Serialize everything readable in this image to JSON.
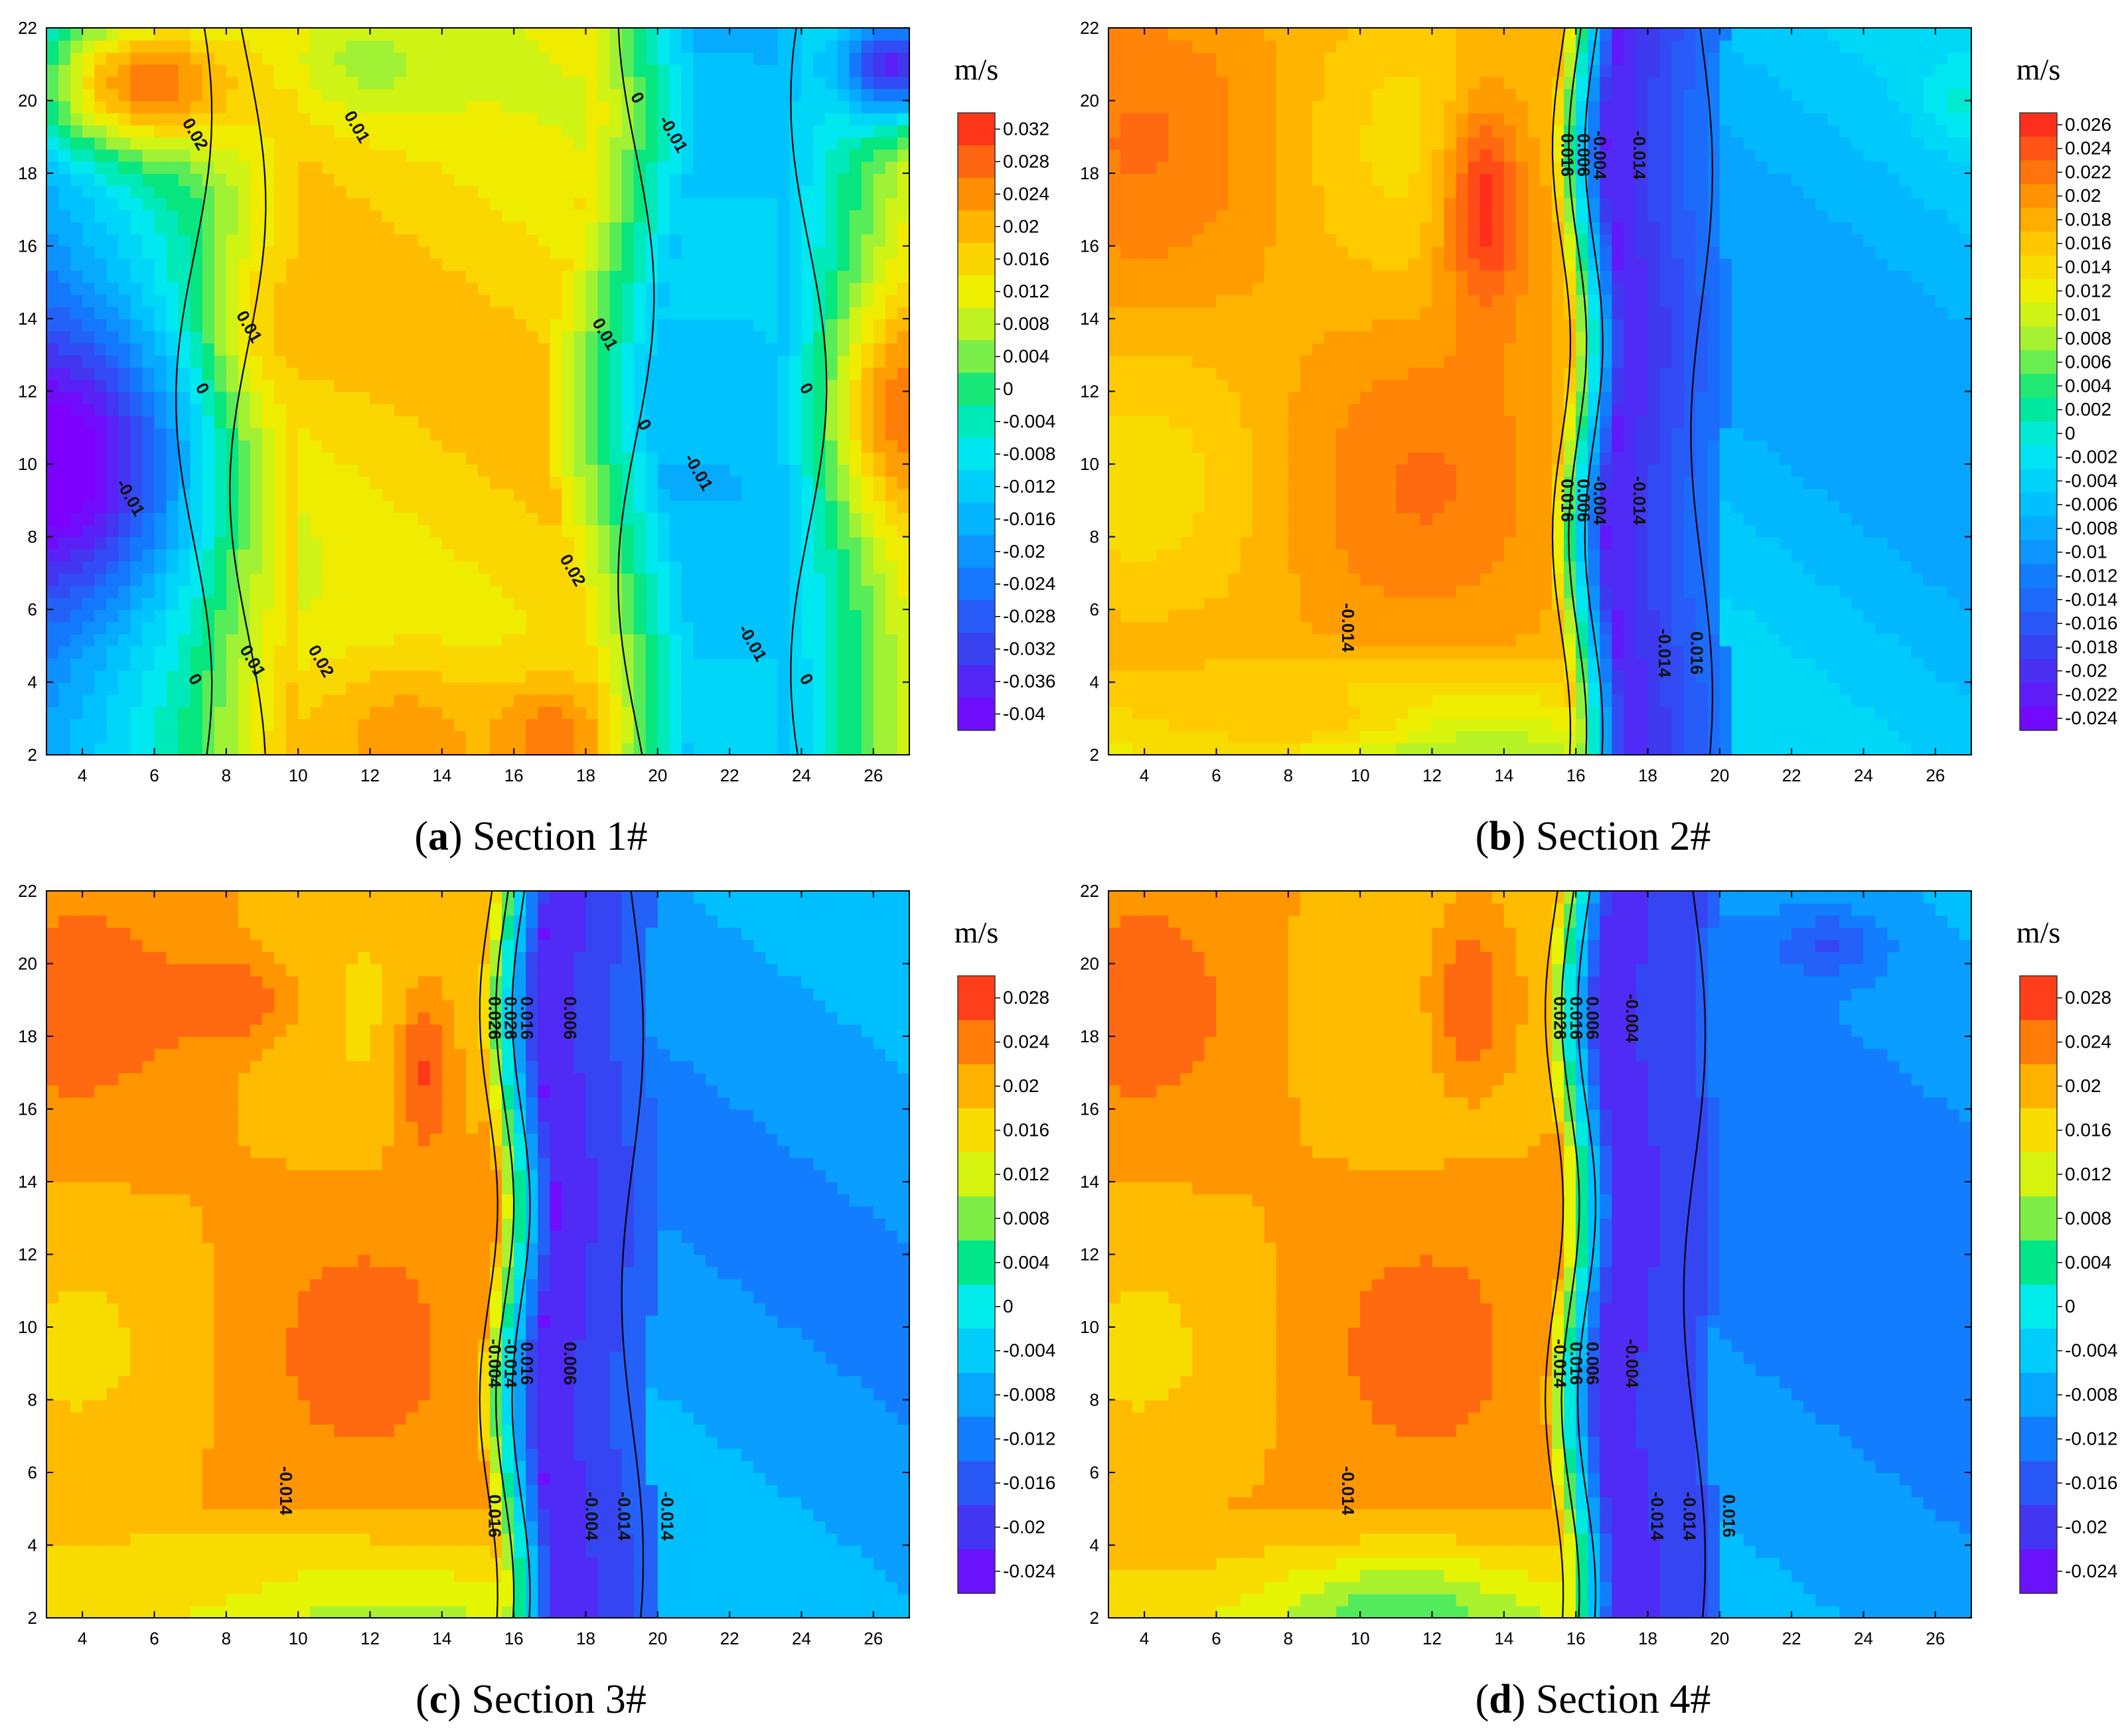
{
  "chart_data": [
    {
      "type": "heatmap",
      "title": "Section 1#",
      "panel_letter": "a",
      "unit": "m/s",
      "xlim": [
        3,
        27
      ],
      "ylim": [
        2,
        22
      ],
      "x_ticks": [
        "4",
        "6",
        "8",
        "10",
        "12",
        "14",
        "16",
        "18",
        "20",
        "22",
        "24",
        "26"
      ],
      "y_ticks": [
        "2",
        "4",
        "6",
        "8",
        "10",
        "12",
        "14",
        "16",
        "18",
        "20",
        "22"
      ],
      "colorbar_ticks": [
        "0.032",
        "0.028",
        "0.024",
        "0.02",
        "0.016",
        "0.012",
        "0.008",
        "0.004",
        "0",
        "-0.004",
        "-0.008",
        "-0.012",
        "-0.016",
        "-0.02",
        "-0.024",
        "-0.028",
        "-0.032",
        "-0.036",
        "-0.04"
      ],
      "vmin": -0.04,
      "vmax": 0.035,
      "contour_labels": [
        "0.02",
        "0.01",
        "0",
        "-0.01",
        "0.01",
        "0",
        "-0.01",
        "0",
        "0.01",
        "0.02",
        "0.02",
        "0.01",
        "0",
        "-0.01",
        "-0.01",
        "0",
        "0"
      ],
      "blobs": [
        {
          "x": 3,
          "y": 10,
          "v": -0.045,
          "rx": 4.5,
          "ry": 5
        },
        {
          "x": 6,
          "y": 20.5,
          "v": 0.027,
          "rx": 4,
          "ry": 2.5
        },
        {
          "x": 13,
          "y": 2.5,
          "v": 0.024,
          "rx": 4,
          "ry": 3
        },
        {
          "x": 17,
          "y": 2.5,
          "v": 0.028,
          "rx": 2,
          "ry": 2
        },
        {
          "x": 27,
          "y": 11.5,
          "v": 0.028,
          "rx": 2.5,
          "ry": 4
        },
        {
          "x": 26.5,
          "y": 21,
          "v": -0.034,
          "rx": 2,
          "ry": 2
        },
        {
          "x": 12,
          "y": 21,
          "v": 0.008,
          "rx": 3,
          "ry": 2
        },
        {
          "x": 10,
          "y": 14,
          "v": 0.02,
          "rx": 2.5,
          "ry": 3
        }
      ]
    },
    {
      "type": "heatmap",
      "title": "Section 2#",
      "panel_letter": "b",
      "unit": "m/s",
      "xlim": [
        3,
        27
      ],
      "ylim": [
        2,
        22
      ],
      "x_ticks": [
        "4",
        "6",
        "8",
        "10",
        "12",
        "14",
        "16",
        "18",
        "20",
        "22",
        "24",
        "26"
      ],
      "y_ticks": [
        "2",
        "4",
        "6",
        "8",
        "10",
        "12",
        "14",
        "16",
        "18",
        "20",
        "22"
      ],
      "colorbar_ticks": [
        "0.026",
        "0.024",
        "0.022",
        "0.02",
        "0.018",
        "0.016",
        "0.014",
        "0.012",
        "0.01",
        "0.008",
        "0.006",
        "0.004",
        "0.002",
        "0",
        "-0.002",
        "-0.004",
        "-0.006",
        "-0.008",
        "-0.01",
        "-0.012",
        "-0.014",
        "-0.016",
        "-0.018",
        "-0.02",
        "-0.022",
        "-0.024"
      ],
      "vmin": -0.025,
      "vmax": 0.027,
      "contour_labels": [
        "0.016",
        "0.006",
        "-0.004",
        "-0.014",
        "0.016",
        "0.006",
        "-0.004",
        "-0.014",
        "-0.014",
        "-0.014",
        "0.016"
      ],
      "blobs": [
        {
          "x": 13.5,
          "y": 17,
          "v": 0.026,
          "rx": 1.5,
          "ry": 4
        },
        {
          "x": 26.7,
          "y": 20,
          "v": 0.0,
          "rx": 1.3,
          "ry": 1.3
        },
        {
          "x": 8,
          "y": 3,
          "v": 0.016,
          "rx": 5,
          "ry": 1.5
        }
      ]
    },
    {
      "type": "heatmap",
      "title": "Section 3#",
      "panel_letter": "c",
      "unit": "m/s",
      "xlim": [
        3,
        27
      ],
      "ylim": [
        2,
        22
      ],
      "x_ticks": [
        "4",
        "6",
        "8",
        "10",
        "12",
        "14",
        "16",
        "18",
        "20",
        "22",
        "24",
        "26"
      ],
      "y_ticks": [
        "2",
        "4",
        "6",
        "8",
        "10",
        "12",
        "14",
        "16",
        "18",
        "20",
        "22"
      ],
      "colorbar_ticks": [
        "0.028",
        "0.024",
        "0.02",
        "0.016",
        "0.012",
        "0.008",
        "0.004",
        "0",
        "-0.004",
        "-0.008",
        "-0.012",
        "-0.016",
        "-0.02",
        "-0.024"
      ],
      "vmin": -0.026,
      "vmax": 0.03,
      "contour_labels": [
        "0.026",
        "0.026",
        "0.016",
        "0.006",
        "-0.004",
        "-0.014",
        "0.016",
        "0.006",
        "-0.004",
        "-0.014",
        "-0.014",
        "-0.014",
        "0.016"
      ],
      "blobs": [
        {
          "x": 8,
          "y": 19,
          "v": 0.027,
          "rx": 2.5,
          "ry": 1.5
        },
        {
          "x": 13.5,
          "y": 17,
          "v": 0.027,
          "rx": 1,
          "ry": 3
        },
        {
          "x": 6,
          "y": 3,
          "v": 0.015,
          "rx": 6,
          "ry": 1.5
        }
      ]
    },
    {
      "type": "heatmap",
      "title": "Section 4#",
      "panel_letter": "d",
      "unit": "m/s",
      "xlim": [
        3,
        27
      ],
      "ylim": [
        2,
        22
      ],
      "x_ticks": [
        "4",
        "6",
        "8",
        "10",
        "12",
        "14",
        "16",
        "18",
        "20",
        "22",
        "24",
        "26"
      ],
      "y_ticks": [
        "2",
        "4",
        "6",
        "8",
        "10",
        "12",
        "14",
        "16",
        "18",
        "20",
        "22"
      ],
      "colorbar_ticks": [
        "0.028",
        "0.024",
        "0.02",
        "0.016",
        "0.012",
        "0.008",
        "0.004",
        "0",
        "-0.004",
        "-0.008",
        "-0.012",
        "-0.016",
        "-0.02",
        "-0.024"
      ],
      "vmin": -0.026,
      "vmax": 0.03,
      "contour_labels": [
        "0.026",
        "0.016",
        "0.006",
        "-0.004",
        "-0.014",
        "0.016",
        "0.006",
        "-0.004",
        "-0.014",
        "-0.014",
        "-0.014",
        "0.016"
      ],
      "blobs": [
        {
          "x": 13,
          "y": 19,
          "v": 0.027,
          "rx": 1.5,
          "ry": 3
        },
        {
          "x": 23,
          "y": 20.5,
          "v": -0.017,
          "rx": 2,
          "ry": 1.2
        },
        {
          "x": 11,
          "y": 2,
          "v": 0.006,
          "rx": 3,
          "ry": 1.5
        }
      ]
    }
  ]
}
